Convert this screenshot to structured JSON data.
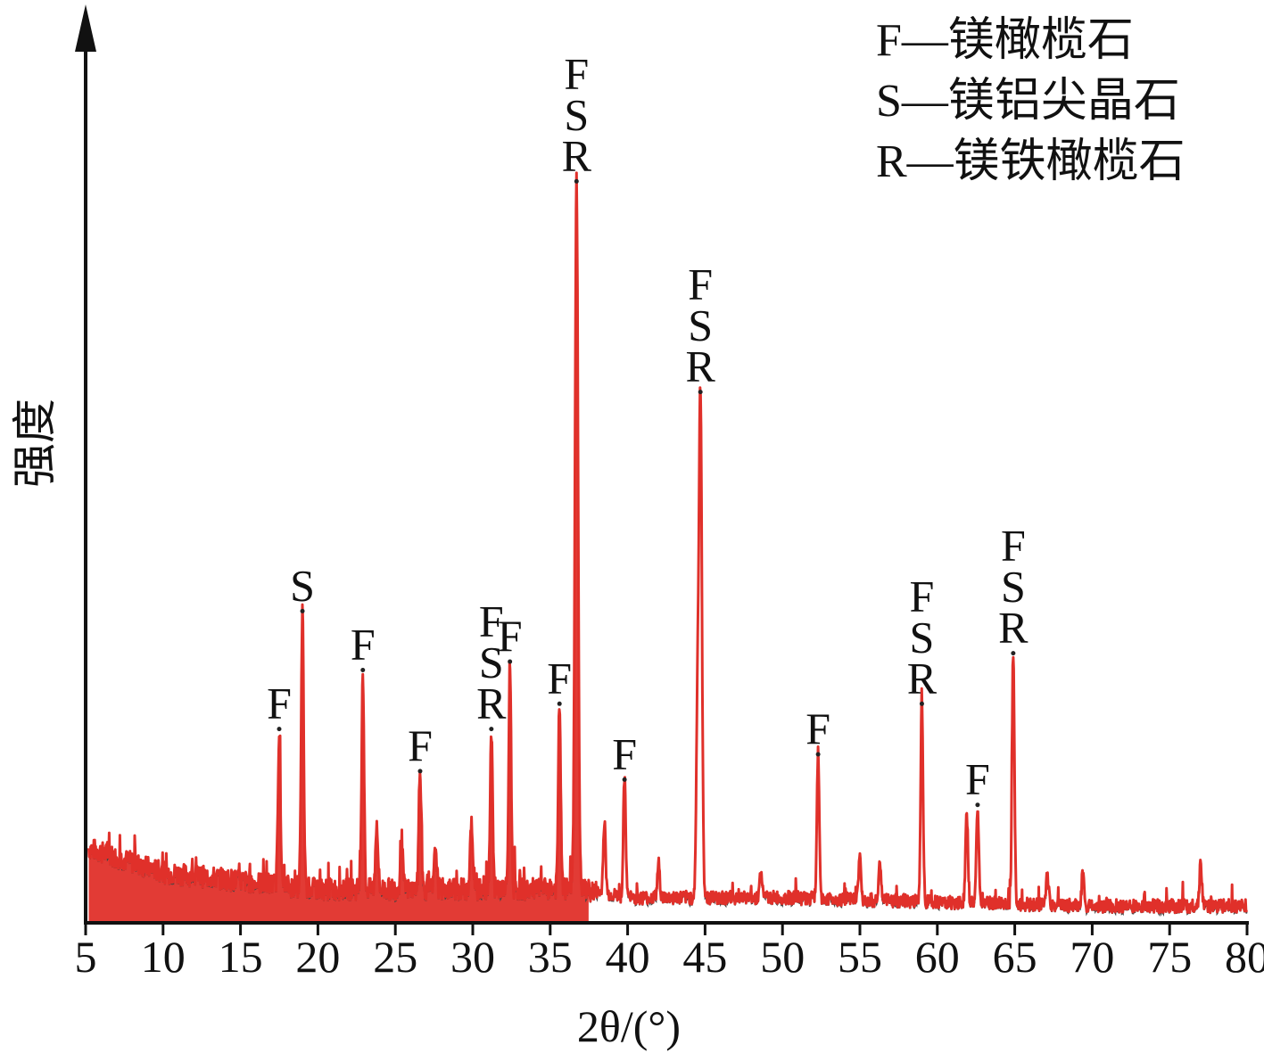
{
  "chart_data": {
    "type": "line",
    "xlabel": "2θ/(°)",
    "ylabel": "强度",
    "xlim": [
      5,
      80
    ],
    "xticks": [
      5,
      10,
      15,
      20,
      25,
      30,
      35,
      40,
      45,
      50,
      55,
      60,
      65,
      70,
      75,
      80
    ],
    "yticks": [],
    "grid": false,
    "line_color": "#e0302a",
    "legend": {
      "placement": "top-right",
      "entries": [
        "F—镁橄榄石",
        "S—镁铝尖晶石",
        "R—镁铁橄榄石"
      ]
    },
    "baseline": {
      "x": [
        5,
        10,
        20,
        30,
        37,
        40,
        50,
        60,
        70,
        80
      ],
      "y": [
        9,
        6,
        4,
        4,
        4,
        3,
        3,
        2.5,
        2,
        2
      ]
    },
    "peaks": [
      {
        "x": 17.5,
        "y": 23,
        "labels": [
          "F"
        ]
      },
      {
        "x": 19.0,
        "y": 37,
        "labels": [
          "S"
        ]
      },
      {
        "x": 22.9,
        "y": 30,
        "labels": [
          "F"
        ]
      },
      {
        "x": 23.8,
        "y": 12,
        "labels": []
      },
      {
        "x": 25.4,
        "y": 10,
        "labels": []
      },
      {
        "x": 26.6,
        "y": 18,
        "labels": [
          "F"
        ]
      },
      {
        "x": 27.6,
        "y": 9,
        "labels": []
      },
      {
        "x": 29.9,
        "y": 12,
        "labels": []
      },
      {
        "x": 31.2,
        "y": 23,
        "labels": [
          "F",
          "S",
          "R"
        ]
      },
      {
        "x": 32.4,
        "y": 31,
        "labels": [
          "F"
        ]
      },
      {
        "x": 35.6,
        "y": 26,
        "labels": [
          "F"
        ]
      },
      {
        "x": 36.7,
        "y": 88,
        "labels": [
          "F",
          "S",
          "R"
        ]
      },
      {
        "x": 38.5,
        "y": 12,
        "labels": []
      },
      {
        "x": 39.8,
        "y": 17,
        "labels": [
          "F"
        ]
      },
      {
        "x": 42.0,
        "y": 7,
        "labels": []
      },
      {
        "x": 44.5,
        "y": 22,
        "labels": []
      },
      {
        "x": 44.7,
        "y": 63,
        "labels": [
          "F",
          "S",
          "R"
        ]
      },
      {
        "x": 48.6,
        "y": 6,
        "labels": []
      },
      {
        "x": 52.3,
        "y": 20,
        "labels": [
          "F"
        ]
      },
      {
        "x": 55.0,
        "y": 8,
        "labels": []
      },
      {
        "x": 56.3,
        "y": 7,
        "labels": []
      },
      {
        "x": 59.0,
        "y": 26,
        "labels": [
          "F",
          "S",
          "R"
        ]
      },
      {
        "x": 61.9,
        "y": 13,
        "labels": []
      },
      {
        "x": 62.6,
        "y": 14,
        "labels": [
          "F"
        ]
      },
      {
        "x": 64.9,
        "y": 32,
        "labels": [
          "F",
          "S",
          "R"
        ]
      },
      {
        "x": 67.1,
        "y": 6,
        "labels": []
      },
      {
        "x": 69.4,
        "y": 6,
        "labels": []
      },
      {
        "x": 77.0,
        "y": 7,
        "labels": []
      }
    ]
  }
}
